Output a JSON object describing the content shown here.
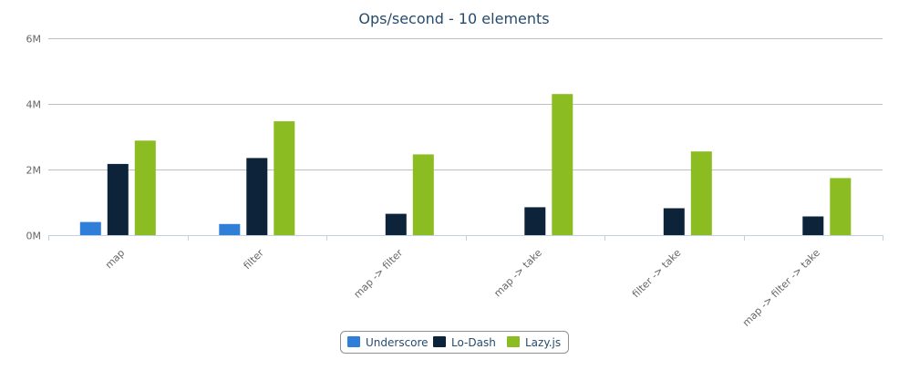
{
  "chart_data": {
    "type": "bar",
    "title": "Ops/second - 10 elements",
    "categories": [
      "map",
      "filter",
      "map -> filter",
      "map -> take",
      "filter -> take",
      "map -> filter -> take"
    ],
    "series": [
      {
        "name": "Underscore",
        "color": "#2f7ed8",
        "values": [
          400000,
          340000,
          0,
          0,
          0,
          0
        ]
      },
      {
        "name": "Lo-Dash",
        "color": "#0d233a",
        "values": [
          2170000,
          2350000,
          650000,
          850000,
          820000,
          570000
        ]
      },
      {
        "name": "Lazy.js",
        "color": "#8bbc21",
        "values": [
          2880000,
          3470000,
          2460000,
          4300000,
          2550000,
          1740000
        ]
      }
    ],
    "ylim": [
      0,
      6000000
    ],
    "yticks": [
      {
        "value": 0,
        "label": "0M"
      },
      {
        "value": 2000000,
        "label": "2M"
      },
      {
        "value": 4000000,
        "label": "4M"
      },
      {
        "value": 6000000,
        "label": "6M"
      }
    ],
    "grid": true,
    "legend": "bottom-center"
  }
}
